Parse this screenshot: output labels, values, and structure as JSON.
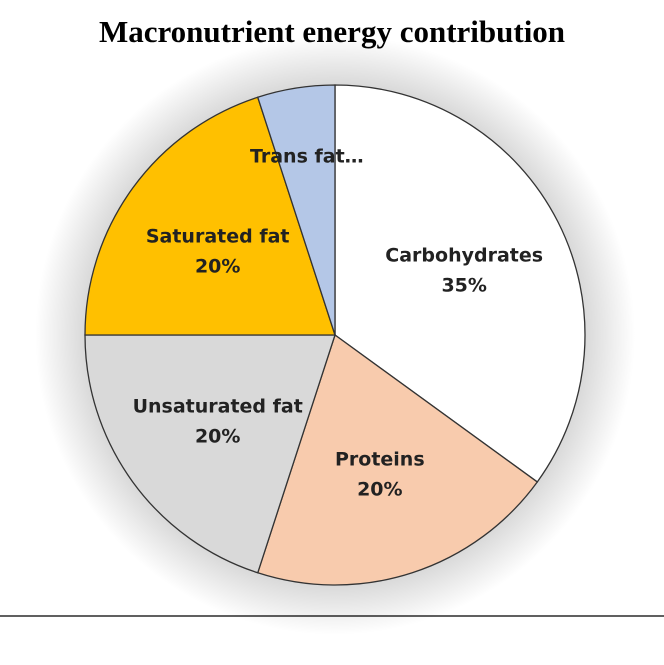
{
  "chart_data": {
    "type": "pie",
    "title": "Macronutrient energy contribution",
    "categories": [
      "Carbohydrates",
      "Proteins",
      "Unsaturated fat",
      "Saturated fat",
      "Trans fat…"
    ],
    "values": [
      35,
      20,
      20,
      20,
      5
    ],
    "value_labels": [
      "35%",
      "20%",
      "20%",
      "20%",
      null
    ],
    "colors": [
      "#ffffff",
      "#f8cbad",
      "#d9d9d9",
      "#ffc000",
      "#b4c7e7"
    ]
  }
}
